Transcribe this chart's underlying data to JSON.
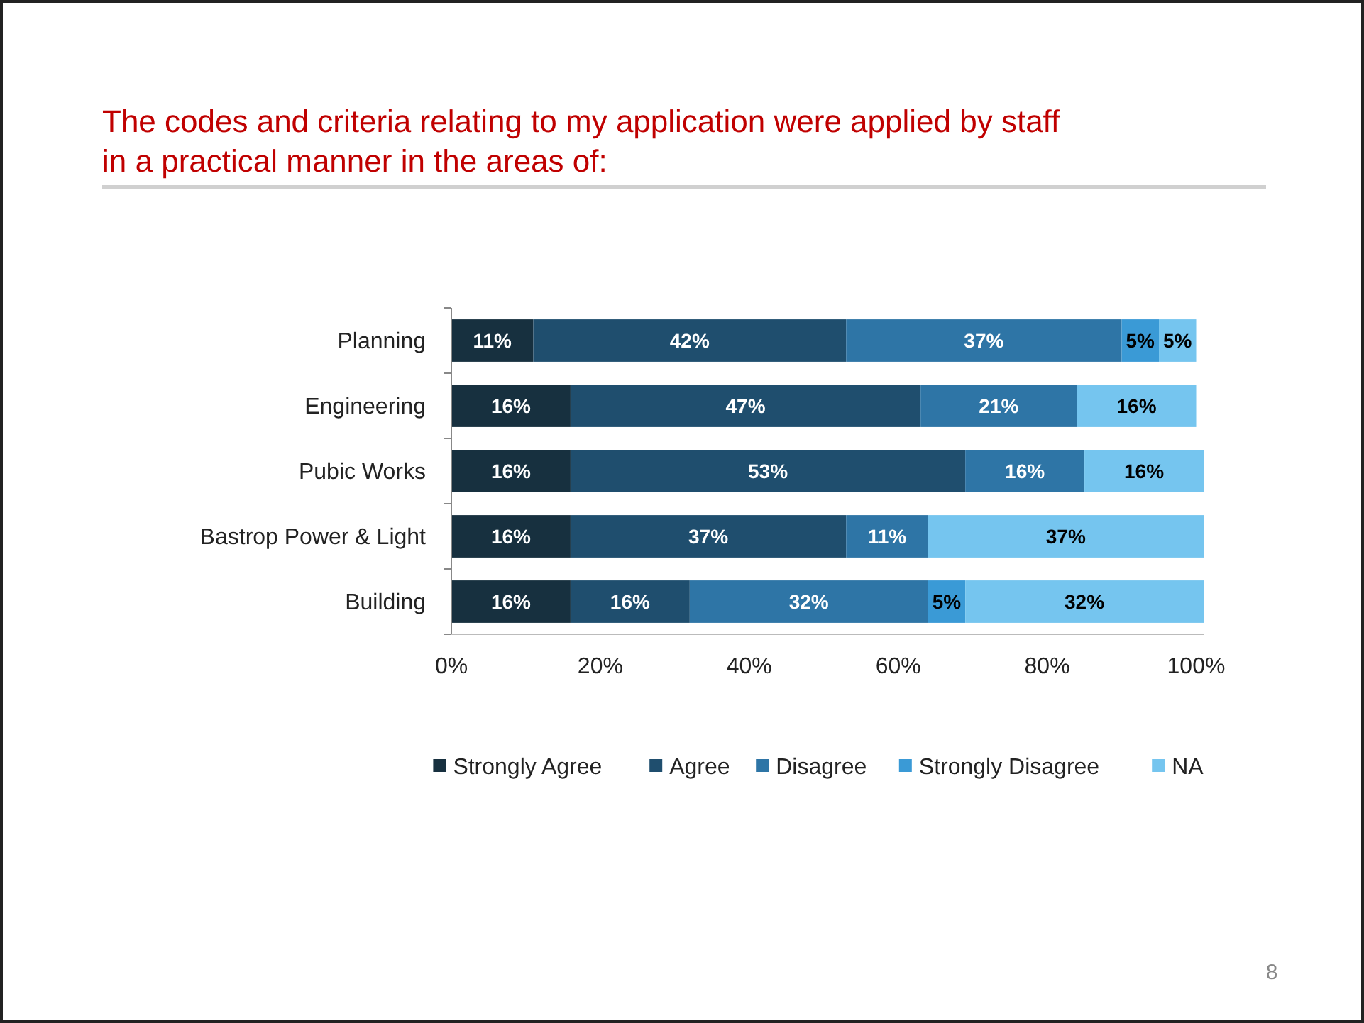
{
  "chart_data": {
    "type": "bar",
    "orientation": "horizontal",
    "stacked": true,
    "title": "The codes and criteria relating to my application were applied by staff in a practical manner in the areas of:",
    "categories": [
      "Planning",
      "Engineering",
      "Pubic Works",
      "Bastrop Power & Light",
      "Building"
    ],
    "series": [
      {
        "name": "Strongly Agree",
        "color": "#17303f",
        "values": [
          11,
          16,
          16,
          16,
          16
        ],
        "value_labels": [
          "11%",
          "16%",
          "16%",
          "16%",
          "16%"
        ]
      },
      {
        "name": "Agree",
        "color": "#1f4e6e",
        "values": [
          42,
          47,
          53,
          37,
          16
        ],
        "value_labels": [
          "42%",
          "47%",
          "53%",
          "37%",
          "16%"
        ]
      },
      {
        "name": "Disagree",
        "color": "#2e75a6",
        "values": [
          37,
          21,
          16,
          11,
          32
        ],
        "value_labels": [
          "37%",
          "21%",
          "16%",
          "11%",
          "32%"
        ]
      },
      {
        "name": "Strongly Disagree",
        "color": "#3a9ad6",
        "values": [
          5,
          null,
          null,
          null,
          5
        ],
        "value_labels": [
          "5%",
          null,
          null,
          null,
          "5%"
        ]
      },
      {
        "name": "NA",
        "color": "#75c5ef",
        "values": [
          5,
          16,
          16,
          37,
          32
        ],
        "value_labels": [
          "5%",
          "16%",
          "16%",
          "37%",
          "32%"
        ]
      }
    ],
    "xlim": [
      0,
      101
    ],
    "xticks": [
      {
        "value": 0,
        "label": "0%"
      },
      {
        "value": 20,
        "label": "20%"
      },
      {
        "value": 40,
        "label": "40%"
      },
      {
        "value": 60,
        "label": "60%"
      },
      {
        "value": 80,
        "label": "80%"
      },
      {
        "value": 100,
        "label": "100%"
      }
    ],
    "grid": false,
    "legend": "bottom",
    "annotations": [
      "8"
    ]
  }
}
